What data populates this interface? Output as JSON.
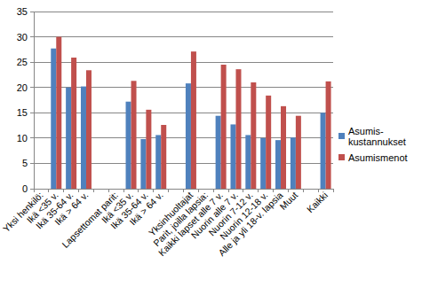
{
  "chart_data": {
    "type": "bar",
    "categories": [
      "Yksi henkilö:",
      "Ikä <35 v.",
      "Ikä 35-64 v.",
      "Ikä > 64 v.",
      null,
      "Lapsettomat parit:",
      "Ikä <35 v.",
      "Ikä 35-64 v.",
      "Ikä > 64 v.",
      null,
      "Yksinhuoltajat",
      "Parit, joilla lapsia:",
      "Kaikki lapset alle 7 v.",
      "Nuorin alle 7 v.",
      "Nuorin 7-12 v.",
      "Nuorin 12-18 v.",
      "Alle ja yli 18-v. lapsia",
      "Muut",
      null,
      "Kaikki"
    ],
    "series": [
      {
        "name": "Asumis-kustannukset",
        "color": "#4f81bd",
        "values": [
          null,
          27.7,
          20.0,
          20.2,
          null,
          null,
          17.2,
          9.8,
          10.6,
          null,
          20.8,
          null,
          14.4,
          12.7,
          10.6,
          10.0,
          9.6,
          10.1,
          null,
          15.0
        ]
      },
      {
        "name": "Asumismenot",
        "color": "#c0504d",
        "values": [
          null,
          30.0,
          25.9,
          23.4,
          null,
          null,
          21.3,
          15.6,
          12.6,
          null,
          27.1,
          null,
          24.5,
          23.6,
          21.0,
          18.4,
          16.3,
          14.4,
          null,
          21.2
        ]
      }
    ],
    "ylim": [
      0,
      35
    ],
    "yticks": [
      0,
      5,
      10,
      15,
      20,
      25,
      30,
      35
    ],
    "grid": true,
    "legend": "right"
  }
}
